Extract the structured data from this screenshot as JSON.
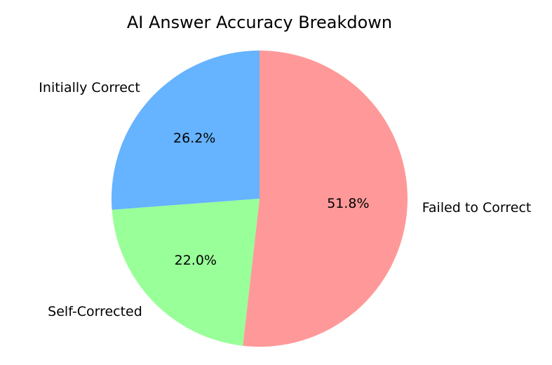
{
  "chart_data": {
    "type": "pie",
    "title": "AI Answer Accuracy Breakdown",
    "slices": [
      {
        "label": "Failed to Correct",
        "value": 51.8,
        "pct_label": "51.8%",
        "color": "#ff9999"
      },
      {
        "label": "Self-Corrected",
        "value": 22.0,
        "pct_label": "22.0%",
        "color": "#99ff99"
      },
      {
        "label": "Initially Correct",
        "value": 26.2,
        "pct_label": "26.2%",
        "color": "#66b3ff"
      }
    ],
    "start_angle": "top (12 o'clock)",
    "direction": "clockwise"
  }
}
